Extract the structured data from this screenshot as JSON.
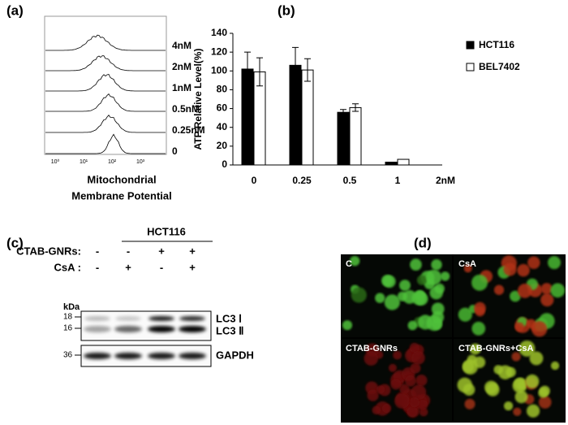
{
  "panel_labels": [
    "(a)",
    "(b)",
    "(c)",
    "(d)"
  ],
  "panel_a": {
    "samples": [
      "4nM",
      "2nM",
      "1nM",
      "0.5nM",
      "0.25nM",
      "0"
    ],
    "x_ticks": [
      "10⁰",
      "10¹",
      "10²",
      "10³"
    ],
    "xlabel": [
      "Mitochondrial",
      "Membrane Potential"
    ]
  },
  "chart_data": {
    "type": "bar",
    "ylabel": "ATP Relative Level(%)",
    "categories": [
      "0",
      "0.25",
      "0.5",
      "1",
      "2nM"
    ],
    "series": [
      {
        "name": "HCT116",
        "color": "#000000",
        "values": [
          102,
          106,
          56,
          3,
          0
        ],
        "errors": [
          18,
          19,
          3,
          0,
          0
        ]
      },
      {
        "name": "BEL7402",
        "color": "#ffffff",
        "values": [
          99,
          101,
          61,
          6,
          0
        ],
        "errors": [
          15,
          12,
          4,
          0,
          0
        ]
      }
    ],
    "ylim": [
      0,
      140
    ],
    "yticks": [
      0,
      20,
      40,
      60,
      80,
      100,
      120,
      140
    ],
    "legend": "right"
  },
  "panel_c": {
    "title": "HCT116",
    "rows": [
      {
        "label": "CTAB-GNRs:",
        "signs": [
          "-",
          "-",
          "+",
          "+"
        ]
      },
      {
        "label": "CsA :",
        "signs": [
          "-",
          "+",
          "-",
          "+"
        ]
      }
    ],
    "unit": "kDa",
    "markers": [
      "18",
      "16",
      "36"
    ],
    "bands": [
      "LC3 Ⅰ",
      "LC3 Ⅱ",
      "GAPDH"
    ]
  },
  "panel_d": {
    "images": [
      "C",
      "CsA",
      "CTAB-GNRs",
      "CTAB-GNRs+CsA"
    ]
  }
}
